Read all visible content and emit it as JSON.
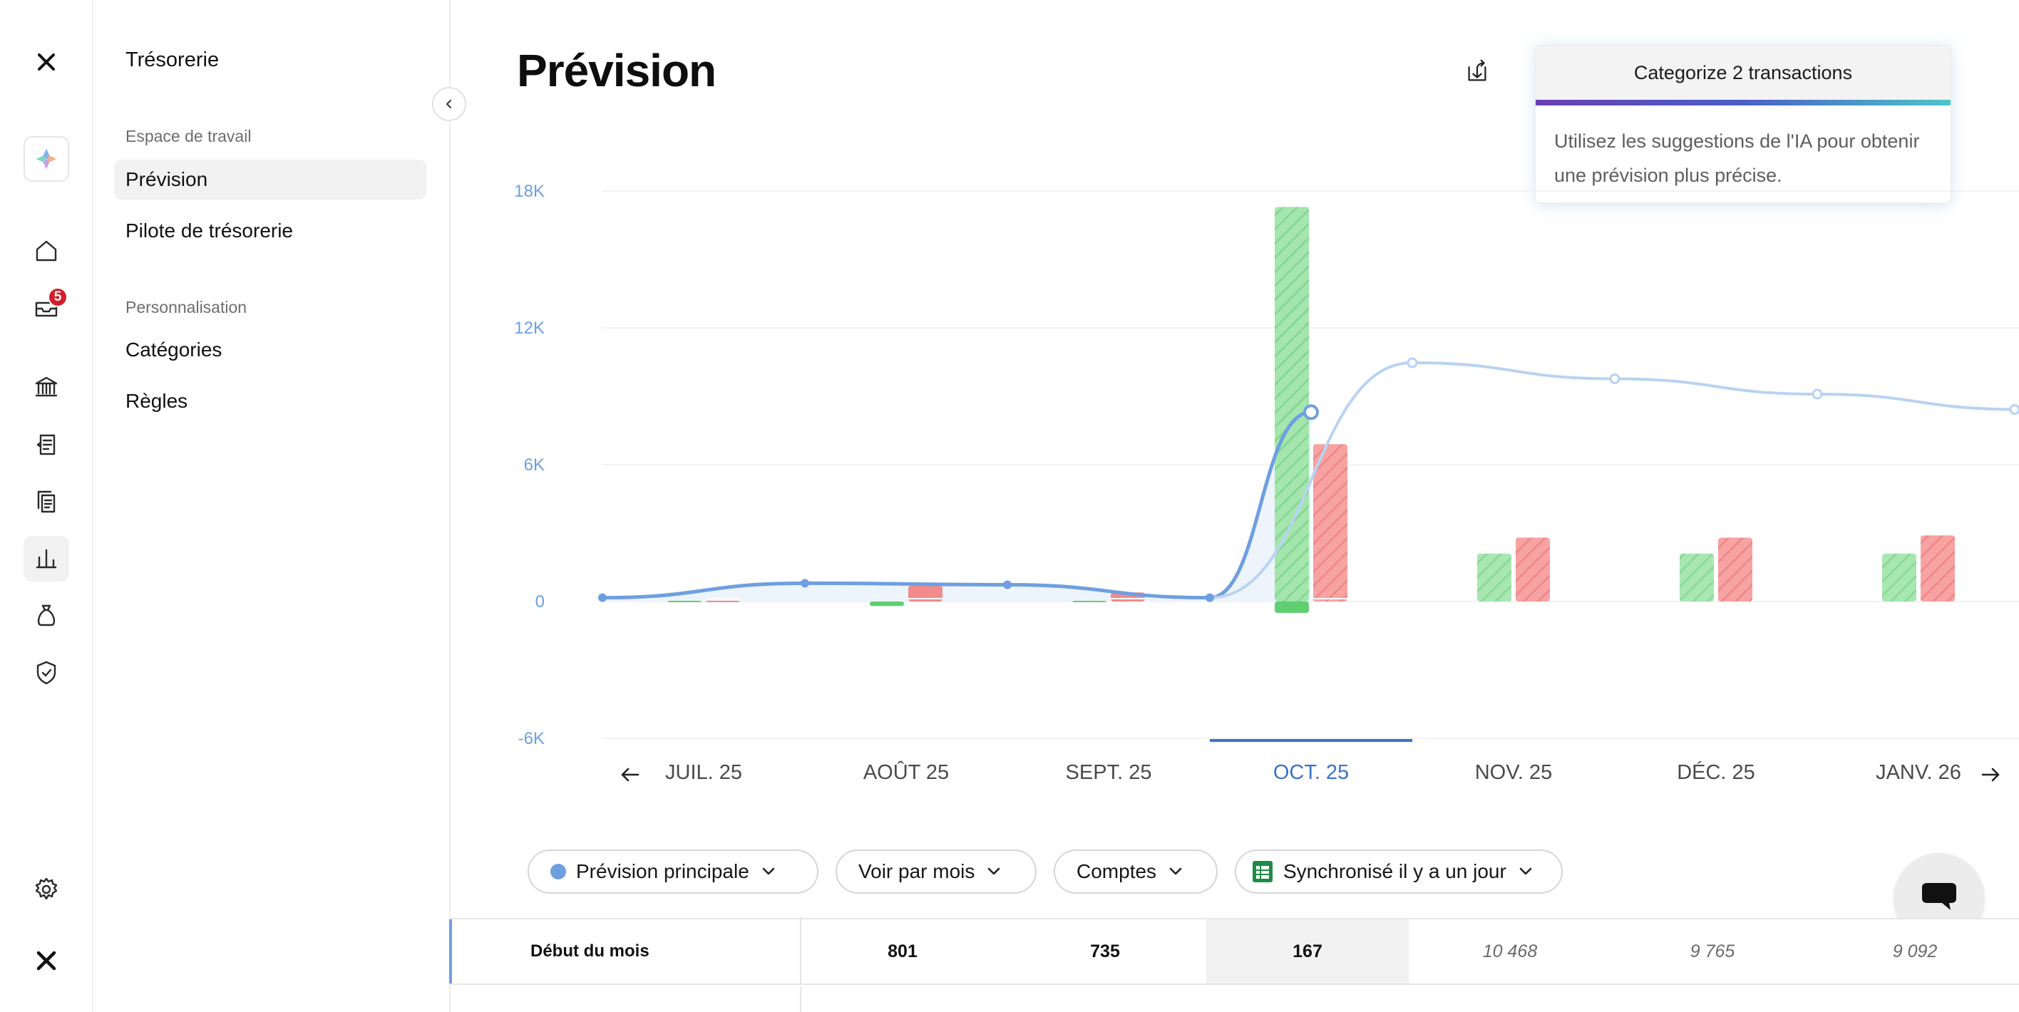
{
  "sidebar": {
    "notifications_count": "5",
    "rail_icons": [
      "logo-icon",
      "workspace-icon",
      "home-icon",
      "inbox-icon",
      "bank-icon",
      "invoices-icon",
      "documents-icon",
      "chart-icon",
      "money-bag-icon",
      "shield-icon",
      "settings-icon",
      "brand-icon"
    ]
  },
  "subnav": {
    "title": "Trésorerie",
    "sections": [
      {
        "label": "Espace de travail",
        "items": [
          {
            "label": "Prévision",
            "active": true
          },
          {
            "label": "Pilote de trésorerie",
            "active": false
          }
        ]
      },
      {
        "label": "Personnalisation",
        "items": [
          {
            "label": "Catégories",
            "active": false
          },
          {
            "label": "Règles",
            "active": false
          }
        ]
      }
    ]
  },
  "page": {
    "title": "Prévision"
  },
  "ai_card": {
    "title": "Categorize 2 transactions",
    "body_line1": "Utilisez les suggestions de l'IA pour obtenir",
    "body_line2": "une prévision plus précise."
  },
  "chart_data": {
    "type": "bar",
    "y_ticks": [
      "18K",
      "12K",
      "6K",
      "0",
      "-6K"
    ],
    "ylim": [
      -6000,
      18000
    ],
    "categories": [
      "JUIL. 25",
      "AOÛT 25",
      "SEPT. 25",
      "OCT. 25",
      "NOV. 25",
      "DÉC. 25",
      "JANV. 26"
    ],
    "selected_category": "OCT. 25",
    "series": [
      {
        "values": [
          30,
          -200,
          30,
          17300,
          2100,
          2100,
          2100
        ]
      },
      {
        "values": [
          30,
          700,
          400,
          6900,
          2800,
          2800,
          2900
        ]
      },
      {
        "values": [
          167,
          801,
          735,
          167,
          10468,
          9765,
          9092
        ]
      }
    ],
    "balance_end": 8300,
    "colors": {
      "inflow": "#9de3a8",
      "outflow": "#f59b9b",
      "actual_line": "#6e9fe0",
      "forecast_line": "#b9d3f1",
      "tick": "#6e9fe0",
      "selected": "#3b73c8"
    }
  },
  "filters": {
    "scenario": "Prévision principale",
    "period": "Voir par mois",
    "accounts": "Comptes",
    "sync": "Synchronisé il y a un jour"
  },
  "table": {
    "row_label": "Début du mois",
    "values": [
      "801",
      "735",
      "167",
      "10 468",
      "9 765",
      "9 092"
    ],
    "current_index": 2,
    "forecast_from_index": 3
  }
}
